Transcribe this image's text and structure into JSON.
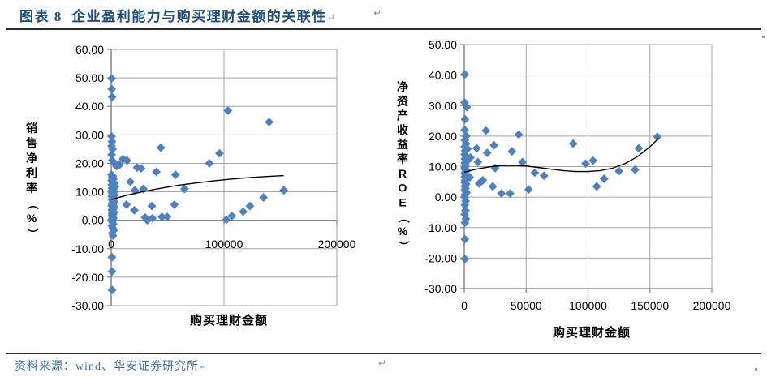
{
  "header": {
    "title": "图表 8  企业盈利能力与购买理财金额的关联性"
  },
  "footer": {
    "source": "资料来源：wind、华安证券研究所"
  },
  "marks": {
    "pilcrow": "↵"
  },
  "colors": {
    "title_blue": "#1f4e79",
    "footer_blue": "#3a6ea8",
    "marker_blue": "#4f81bd",
    "grid_gray": "#a6a6a6",
    "axis_gray": "#808080",
    "trend_black": "#000000"
  },
  "chart_data": [
    {
      "type": "scatter",
      "title": "",
      "xlabel": "购买理财金额",
      "ylabel": "销售净利率（%）",
      "xlim": [
        0,
        200000
      ],
      "ylim": [
        -30,
        60
      ],
      "grid": true,
      "legend": "none",
      "x_tick_values": [
        0,
        100000,
        200000
      ],
      "x_tick_labels": [
        "0",
        "100000",
        "200000"
      ],
      "y_tick_values": [
        60,
        50,
        40,
        30,
        20,
        10,
        0,
        -10,
        -20,
        -30
      ],
      "y_tick_labels": [
        "60.00",
        "50.00",
        "40.00",
        "30.00",
        "20.00",
        "10.00",
        "0.00",
        "-10.00",
        "-20.00",
        "-30.00"
      ],
      "points": [
        [
          500,
          49.8
        ],
        [
          500,
          46.1
        ],
        [
          800,
          43.3
        ],
        [
          300,
          29.5
        ],
        [
          700,
          27.6
        ],
        [
          300,
          26.1
        ],
        [
          1200,
          25
        ],
        [
          400,
          23
        ],
        [
          800,
          21
        ],
        [
          2500,
          20.3
        ],
        [
          10500,
          21.5
        ],
        [
          14000,
          21
        ],
        [
          7500,
          19.5
        ],
        [
          4500,
          19
        ],
        [
          23000,
          18.5
        ],
        [
          26500,
          18.2
        ],
        [
          40000,
          17
        ],
        [
          44000,
          25.5
        ],
        [
          57000,
          16
        ],
        [
          96000,
          23.5
        ],
        [
          87000,
          20
        ],
        [
          300,
          16
        ],
        [
          1500,
          15.5
        ],
        [
          600,
          15
        ],
        [
          2000,
          14.5
        ],
        [
          400,
          14
        ],
        [
          1000,
          13.5
        ],
        [
          2800,
          13
        ],
        [
          500,
          12.5
        ],
        [
          1500,
          12
        ],
        [
          3500,
          11.8
        ],
        [
          700,
          11.3
        ],
        [
          1800,
          10.8
        ],
        [
          400,
          10.3
        ],
        [
          2500,
          10
        ],
        [
          900,
          9.6
        ],
        [
          1600,
          9.2
        ],
        [
          3000,
          8.8
        ],
        [
          500,
          8.4
        ],
        [
          1200,
          8
        ],
        [
          2200,
          7.6
        ],
        [
          600,
          7.2
        ],
        [
          1500,
          6.8
        ],
        [
          2900,
          6.4
        ],
        [
          800,
          6
        ],
        [
          1700,
          5.6
        ],
        [
          400,
          5.2
        ],
        [
          2400,
          4.8
        ],
        [
          1000,
          4.4
        ],
        [
          1900,
          4
        ],
        [
          600,
          3.6
        ],
        [
          1400,
          3.2
        ],
        [
          2700,
          2.8
        ],
        [
          800,
          2.4
        ],
        [
          1600,
          2
        ],
        [
          500,
          1.6
        ],
        [
          1100,
          1.2
        ],
        [
          2000,
          0.8
        ],
        [
          700,
          0.4
        ],
        [
          1500,
          0
        ],
        [
          900,
          -0.6
        ],
        [
          1800,
          -1.3
        ],
        [
          600,
          -2
        ],
        [
          1300,
          -2.8
        ],
        [
          2200,
          -3.6
        ],
        [
          900,
          -4.5
        ],
        [
          1500,
          -5.4
        ],
        [
          700,
          -13
        ],
        [
          700,
          -18
        ],
        [
          700,
          -24.5
        ],
        [
          17000,
          13.5
        ],
        [
          21000,
          10.5
        ],
        [
          28500,
          11
        ],
        [
          13500,
          5.5
        ],
        [
          20500,
          3.5
        ],
        [
          36000,
          5
        ],
        [
          30000,
          1
        ],
        [
          36500,
          0.7
        ],
        [
          32000,
          0
        ],
        [
          45000,
          1.2
        ],
        [
          49500,
          1.2
        ],
        [
          65000,
          11
        ],
        [
          56000,
          5.5
        ],
        [
          103500,
          38.5
        ],
        [
          140000,
          34.5
        ],
        [
          102000,
          0.2
        ],
        [
          107000,
          1.5
        ],
        [
          117000,
          3
        ],
        [
          123000,
          5
        ],
        [
          135000,
          8
        ],
        [
          153000,
          10.5
        ]
      ],
      "trend": [
        [
          0,
          7.3
        ],
        [
          15000,
          8.9
        ],
        [
          30000,
          10.2
        ],
        [
          45000,
          11.3
        ],
        [
          60000,
          12.3
        ],
        [
          75000,
          13.1
        ],
        [
          90000,
          13.8
        ],
        [
          105000,
          14.4
        ],
        [
          120000,
          14.9
        ],
        [
          135000,
          15.3
        ],
        [
          153000,
          15.7
        ]
      ]
    },
    {
      "type": "scatter",
      "title": "",
      "xlabel": "购买理财金额",
      "ylabel": "净资产收益率ROE（%）",
      "xlim": [
        0,
        200000
      ],
      "ylim": [
        -30,
        50
      ],
      "grid": true,
      "legend": "none",
      "x_tick_values": [
        0,
        50000,
        100000,
        150000,
        200000
      ],
      "x_tick_labels": [
        "0",
        "50000",
        "100000",
        "150000",
        "200000"
      ],
      "y_tick_values": [
        50,
        40,
        30,
        20,
        10,
        0,
        -10,
        -20,
        -30
      ],
      "y_tick_labels": [
        "50.00",
        "40.00",
        "30.00",
        "20.00",
        "10.00",
        "0.00",
        "-10.00",
        "-20.00",
        "-30.00"
      ],
      "points": [
        [
          400,
          40.2
        ],
        [
          300,
          31
        ],
        [
          2000,
          29.5
        ],
        [
          600,
          25.5
        ],
        [
          300,
          22
        ],
        [
          1600,
          20
        ],
        [
          400,
          18.7
        ],
        [
          1400,
          17.5
        ],
        [
          300,
          16.5
        ],
        [
          2600,
          15.8
        ],
        [
          700,
          15.2
        ],
        [
          300,
          14
        ],
        [
          1800,
          13.2
        ],
        [
          500,
          12.5
        ],
        [
          2800,
          12
        ],
        [
          400,
          11.2
        ],
        [
          1300,
          10.5
        ],
        [
          600,
          9.9
        ],
        [
          300,
          9.3
        ],
        [
          2000,
          8.7
        ],
        [
          500,
          8
        ],
        [
          1200,
          7.3
        ],
        [
          400,
          6.7
        ],
        [
          2400,
          6.2
        ],
        [
          700,
          5.5
        ],
        [
          300,
          4.9
        ],
        [
          1500,
          4.3
        ],
        [
          500,
          3.6
        ],
        [
          1000,
          2.9
        ],
        [
          400,
          2.2
        ],
        [
          1900,
          1.5
        ],
        [
          600,
          0.8
        ],
        [
          300,
          0.1
        ],
        [
          1100,
          -1.3
        ],
        [
          500,
          -2.6
        ],
        [
          900,
          -4.4
        ],
        [
          400,
          -5.7
        ],
        [
          1300,
          -7.1
        ],
        [
          600,
          -8.4
        ],
        [
          500,
          -13.8
        ],
        [
          500,
          -20.3
        ],
        [
          5000,
          13
        ],
        [
          4500,
          6.5
        ],
        [
          10000,
          16
        ],
        [
          11000,
          11.5
        ],
        [
          12000,
          4.5
        ],
        [
          15000,
          5.5
        ],
        [
          17500,
          21.8
        ],
        [
          18500,
          14.5
        ],
        [
          23000,
          3.5
        ],
        [
          24000,
          17
        ],
        [
          25000,
          9.5
        ],
        [
          30000,
          1.2
        ],
        [
          37000,
          1.2
        ],
        [
          38500,
          15
        ],
        [
          44000,
          20.5
        ],
        [
          47000,
          11.5
        ],
        [
          52000,
          2.5
        ],
        [
          57000,
          8
        ],
        [
          64500,
          7
        ],
        [
          88000,
          17.5
        ],
        [
          98000,
          11
        ],
        [
          104000,
          12
        ],
        [
          107000,
          3.5
        ],
        [
          113000,
          6
        ],
        [
          125000,
          8.5
        ],
        [
          138000,
          9
        ],
        [
          141000,
          16
        ],
        [
          156000,
          19.8
        ]
      ],
      "trend": [
        [
          0,
          8.2
        ],
        [
          10000,
          9.2
        ],
        [
          20000,
          9.9
        ],
        [
          30000,
          10.35
        ],
        [
          40000,
          10.4
        ],
        [
          50000,
          10.2
        ],
        [
          60000,
          9.7
        ],
        [
          70000,
          9.2
        ],
        [
          80000,
          8.7
        ],
        [
          90000,
          8.4
        ],
        [
          100000,
          8.4
        ],
        [
          110000,
          8.7
        ],
        [
          120000,
          9.5
        ],
        [
          130000,
          11
        ],
        [
          140000,
          13.3
        ],
        [
          150000,
          16.5
        ],
        [
          157000,
          19.3
        ]
      ]
    }
  ]
}
